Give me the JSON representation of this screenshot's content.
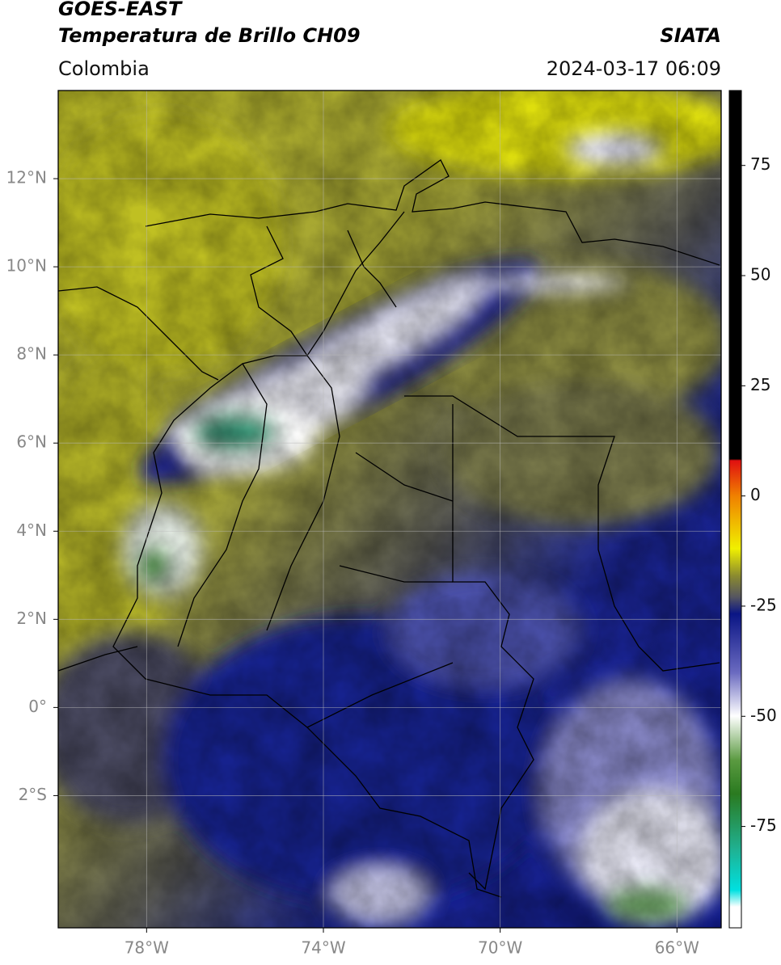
{
  "header": {
    "title_line1": "GOES-EAST",
    "title_line2": "Temperatura de Brillo CH09",
    "source": "SIATA",
    "region": "Colombia",
    "datetime": "2024-03-17 06:09"
  },
  "map": {
    "xlim": [
      -80,
      -65
    ],
    "ylim": [
      -5,
      14
    ],
    "xticks": [
      {
        "value": -78,
        "label": "78°W"
      },
      {
        "value": -74,
        "label": "74°W"
      },
      {
        "value": -70,
        "label": "70°W"
      },
      {
        "value": -66,
        "label": "66°W"
      }
    ],
    "yticks": [
      {
        "value": 12,
        "label": "12°N"
      },
      {
        "value": 10,
        "label": "10°N"
      },
      {
        "value": 8,
        "label": "8°N"
      },
      {
        "value": 6,
        "label": "6°N"
      },
      {
        "value": 4,
        "label": "4°N"
      },
      {
        "value": 2,
        "label": "2°N"
      },
      {
        "value": 0,
        "label": "0°"
      },
      {
        "value": -2,
        "label": "2°S"
      }
    ],
    "grid": true
  },
  "colorbar": {
    "lim": [
      -98,
      92
    ],
    "ticks": [
      75,
      50,
      25,
      0,
      -25,
      -50,
      -75
    ]
  }
}
